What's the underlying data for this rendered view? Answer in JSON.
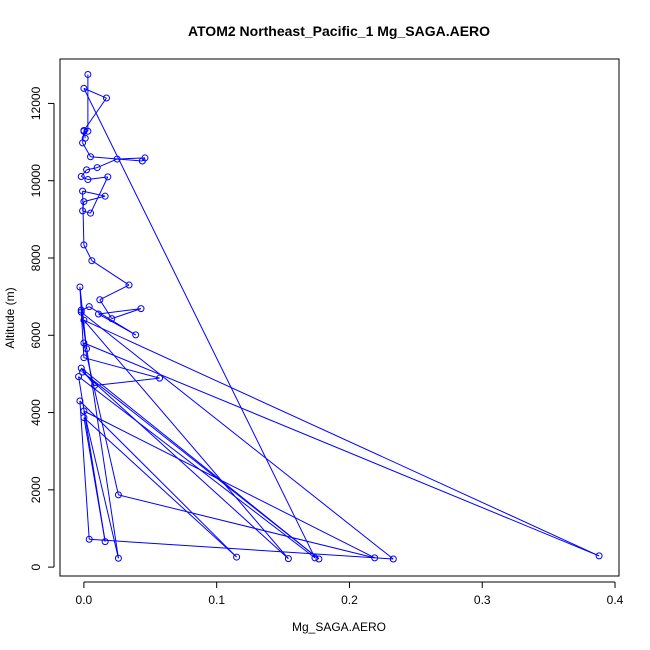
{
  "chart_data": {
    "type": "scatter",
    "title": "ATOM2 Northeast_Pacific_1 Mg_SAGA.AERO",
    "xlabel": "Mg_SAGA.AERO",
    "ylabel": "Altitude (m)",
    "xlim": [
      -0.018,
      0.403
    ],
    "ylim": [
      -230,
      13150
    ],
    "x_ticks": [
      0.0,
      0.1,
      0.2,
      0.3,
      0.4
    ],
    "x_tick_labels": [
      "0.0",
      "0.1",
      "0.2",
      "0.3",
      "0.4"
    ],
    "y_ticks": [
      0,
      2000,
      4000,
      6000,
      8000,
      10000,
      12000
    ],
    "y_tick_labels": [
      "0",
      "2000",
      "4000",
      "6000",
      "8000",
      "10000",
      "12000"
    ],
    "grid": false,
    "legend": "none",
    "series": [
      {
        "color": "#0000ff",
        "marker": "open-circle",
        "connected": true,
        "points": [
          [
            0.003,
            12750
          ],
          [
            0.003,
            11280
          ],
          [
            0.0,
            11280
          ],
          [
            -0.001,
            10980
          ],
          [
            0.005,
            10620
          ],
          [
            0.044,
            10510
          ],
          [
            0.046,
            10590
          ],
          [
            0.025,
            10560
          ],
          [
            0.01,
            10340
          ],
          [
            0.002,
            10280
          ],
          [
            -0.002,
            10110
          ],
          [
            0.003,
            10030
          ],
          [
            0.018,
            10100
          ],
          [
            0.005,
            9160
          ],
          [
            -0.001,
            9220
          ],
          [
            0.0,
            9460
          ],
          [
            0.016,
            9600
          ],
          [
            -0.001,
            9730
          ],
          [
            0.0,
            8340
          ],
          [
            0.006,
            7930
          ],
          [
            0.034,
            7300
          ],
          [
            0.012,
            6920
          ],
          [
            0.021,
            6430
          ],
          [
            0.043,
            6690
          ],
          [
            0.011,
            6550
          ],
          [
            0.039,
            6010
          ],
          [
            0.004,
            6740
          ],
          [
            -0.002,
            6650
          ],
          [
            0.002,
            5650
          ],
          [
            -0.003,
            7250
          ],
          [
            0.0,
            5420
          ],
          [
            0.057,
            4890
          ],
          [
            0.008,
            4700
          ],
          [
            -0.002,
            5150
          ],
          [
            0.177,
            210
          ],
          [
            -0.001,
            5050
          ],
          [
            0.154,
            220
          ],
          [
            0.0,
            6390
          ],
          [
            0.388,
            290
          ],
          [
            0.0,
            5800
          ],
          [
            0.026,
            1870
          ],
          [
            0.219,
            240
          ],
          [
            0.0,
            4040
          ],
          [
            0.026,
            230
          ],
          [
            -0.002,
            6600
          ],
          [
            0.233,
            210
          ],
          [
            0.004,
            720
          ],
          [
            -0.003,
            4300
          ],
          [
            0.115,
            260
          ],
          [
            0.0,
            3870
          ],
          [
            0.016,
            660
          ],
          [
            -0.004,
            4930
          ],
          [
            0.174,
            240
          ],
          [
            0.0,
            12390
          ],
          [
            0.017,
            12140
          ],
          [
            0.0,
            11300
          ],
          [
            0.001,
            11100
          ]
        ]
      }
    ]
  }
}
